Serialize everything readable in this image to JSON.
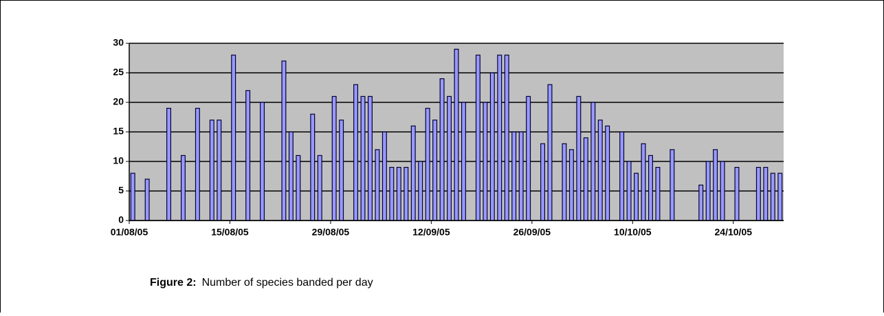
{
  "chart_data": {
    "type": "bar",
    "caption_label": "Figure 2:",
    "caption_text": "Number of species banded per day",
    "categories": [
      "01/08/05",
      null,
      null,
      null,
      null,
      null,
      null,
      null,
      null,
      null,
      null,
      null,
      null,
      null,
      "15/08/05",
      null,
      null,
      null,
      null,
      null,
      null,
      null,
      null,
      null,
      null,
      null,
      null,
      null,
      "29/08/05",
      null,
      null,
      null,
      null,
      null,
      null,
      null,
      null,
      null,
      null,
      null,
      null,
      null,
      "12/09/05",
      null,
      null,
      null,
      null,
      null,
      null,
      null,
      null,
      null,
      null,
      null,
      null,
      null,
      "26/09/05",
      null,
      null,
      null,
      null,
      null,
      null,
      null,
      null,
      null,
      null,
      null,
      null,
      null,
      "10/10/05",
      null,
      null,
      null,
      null,
      null,
      null,
      null,
      null,
      null,
      null,
      null,
      null,
      null,
      "24/10/05",
      null,
      null,
      null,
      null,
      null,
      null
    ],
    "values": [
      8,
      null,
      7,
      null,
      null,
      19,
      null,
      11,
      null,
      19,
      null,
      17,
      17,
      null,
      28,
      null,
      22,
      null,
      20,
      null,
      null,
      27,
      15,
      11,
      null,
      18,
      11,
      null,
      21,
      17,
      null,
      23,
      21,
      21,
      12,
      15,
      9,
      9,
      9,
      16,
      10,
      19,
      17,
      24,
      21,
      29,
      20,
      null,
      28,
      20,
      25,
      28,
      28,
      15,
      15,
      21,
      null,
      13,
      23,
      null,
      13,
      12,
      21,
      14,
      20,
      17,
      16,
      null,
      15,
      10,
      8,
      13,
      11,
      9,
      null,
      12,
      null,
      null,
      null,
      6,
      10,
      12,
      10,
      null,
      9,
      null,
      null,
      9,
      9,
      8,
      8
    ],
    "color": "#9999ff",
    "ylim": [
      0,
      30
    ],
    "yticks": [
      0,
      5,
      10,
      15,
      20,
      25,
      30
    ],
    "grid": true
  }
}
